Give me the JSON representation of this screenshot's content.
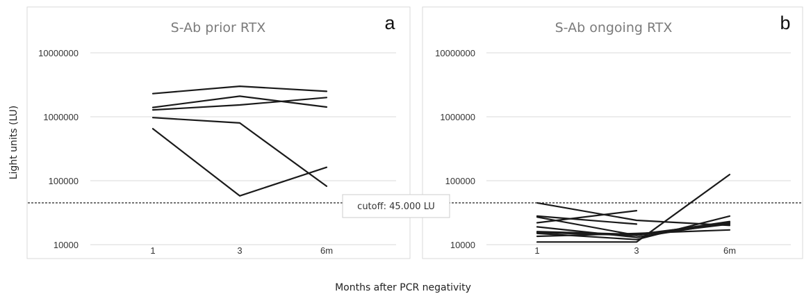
{
  "ylabel": "Light units (LU)",
  "xlabel": "Months after PCR negativity",
  "cutoff": {
    "value": 45000,
    "label": "cutoff: 45.000 LU"
  },
  "colors": {
    "line": "#1a1a1a",
    "grid": "#d9d9d9",
    "frame": "#d9d9d9",
    "cutoff": "#222222"
  },
  "chart_data": [
    {
      "type": "line",
      "title": "S-Ab prior RTX",
      "panel_letter": "a",
      "categories": [
        "1",
        "3",
        "6m"
      ],
      "yscale": "log",
      "ylim": [
        10000,
        10000000
      ],
      "yticks": [
        "10000",
        "100000",
        "1000000",
        "10000000"
      ],
      "grid": true,
      "series": [
        {
          "values": [
            2300000,
            3000000,
            2500000
          ]
        },
        {
          "values": [
            1400000,
            2100000,
            1420000
          ]
        },
        {
          "values": [
            1280000,
            1530000,
            2000000
          ]
        },
        {
          "values": [
            970000,
            800000,
            82000
          ]
        },
        {
          "values": [
            650000,
            58000,
            162000
          ]
        }
      ]
    },
    {
      "type": "line",
      "title": "S-Ab ongoing RTX",
      "panel_letter": "b",
      "categories": [
        "1",
        "3",
        "6m"
      ],
      "yscale": "log",
      "ylim": [
        10000,
        10000000
      ],
      "yticks": [
        "10000",
        "100000",
        "1000000",
        "10000000"
      ],
      "grid": true,
      "series": [
        {
          "values": [
            45000,
            24000,
            20000
          ]
        },
        {
          "values": [
            28000,
            21000,
            null
          ]
        },
        {
          "values": [
            27000,
            14000,
            21000
          ]
        },
        {
          "values": [
            22000,
            34000,
            null
          ]
        },
        {
          "values": [
            19000,
            13000,
            22000
          ]
        },
        {
          "values": [
            16000,
            14500,
            22000
          ]
        },
        {
          "values": [
            15000,
            12000,
            28000
          ]
        },
        {
          "values": [
            13500,
            15000,
            17000
          ]
        },
        {
          "values": [
            11000,
            11000,
            125000
          ]
        },
        {
          "values": [
            15500,
            14000,
            23000
          ]
        }
      ]
    }
  ]
}
